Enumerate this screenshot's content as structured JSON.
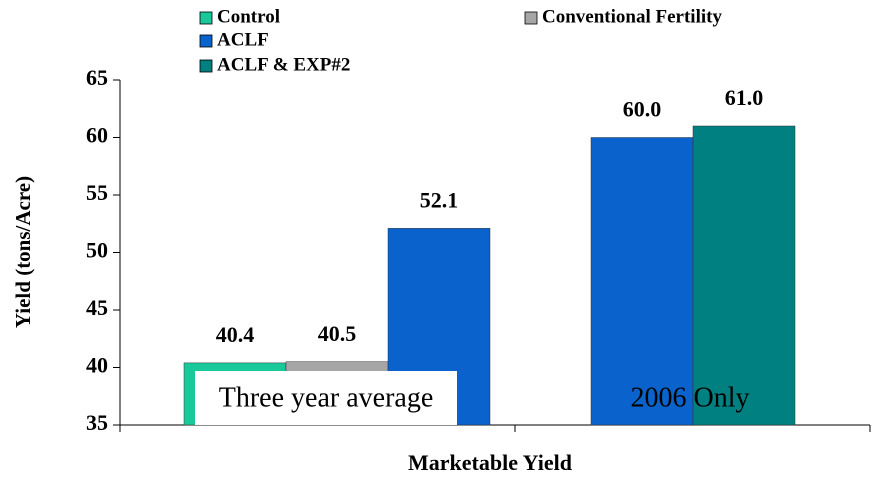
{
  "chart_data": {
    "type": "bar",
    "ylabel": "Yield (tons/Acre)",
    "xlabel": "Marketable Yield",
    "categories": [
      null,
      null
    ],
    "annotations": [
      "Three year average",
      "2006 Only"
    ],
    "series": [
      {
        "name": "Control",
        "color": "#19c99a",
        "values": [
          40.4,
          null
        ],
        "value_labels": [
          "40.4",
          null
        ]
      },
      {
        "name": "Conventional Fertility",
        "color": "#a6a6a6",
        "values": [
          40.5,
          null
        ],
        "value_labels": [
          "40.5",
          null
        ]
      },
      {
        "name": "ACLF",
        "color": "#0a63cc",
        "values": [
          52.1,
          60.0
        ],
        "value_labels": [
          "52.1",
          "60.0"
        ]
      },
      {
        "name": "ACLF & EXP#2",
        "color": "#008080",
        "values": [
          null,
          61.0
        ],
        "value_labels": [
          null,
          "61.0"
        ]
      }
    ],
    "ylim": [
      35,
      65
    ],
    "yticks": [
      35,
      40,
      45,
      50,
      55,
      60,
      65
    ],
    "grid": false
  }
}
